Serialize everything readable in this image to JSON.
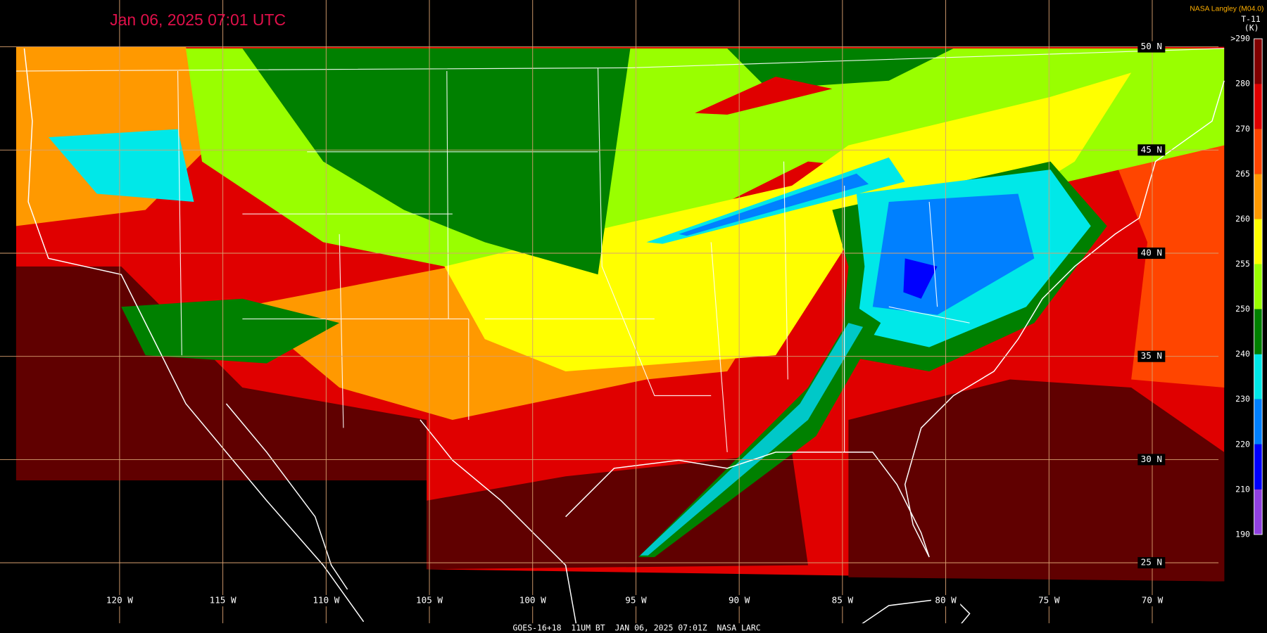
{
  "header": {
    "timestamp": "Jan 06, 2025 07:01 UTC",
    "credit": "NASA Langley (M04.0)"
  },
  "colorbar": {
    "product": "T-11",
    "unit": "(K)",
    "labels": [
      ">290",
      "280",
      "270",
      "265",
      "260",
      "255",
      "250",
      "240",
      "230",
      "220",
      "210",
      "190"
    ],
    "segment_colors": [
      "#800000",
      "#e00000",
      "#ff4500",
      "#ff9900",
      "#ffff00",
      "#99ff00",
      "#008000",
      "#00e8e8",
      "#0080ff",
      "#0000ff",
      "#9040e0"
    ]
  },
  "grid": {
    "latitudes": [
      "50 N",
      "45 N",
      "40 N",
      "35 N",
      "30 N",
      "25 N"
    ],
    "longitudes": [
      "120 W",
      "115 W",
      "110 W",
      "105 W",
      "100 W",
      "95 W",
      "90 W",
      "85 W",
      "80 W",
      "75 W",
      "70 W"
    ]
  },
  "footer": "GOES-16+18  11UM BT  JAN 06, 2025 07:01Z  NASA LARC"
}
